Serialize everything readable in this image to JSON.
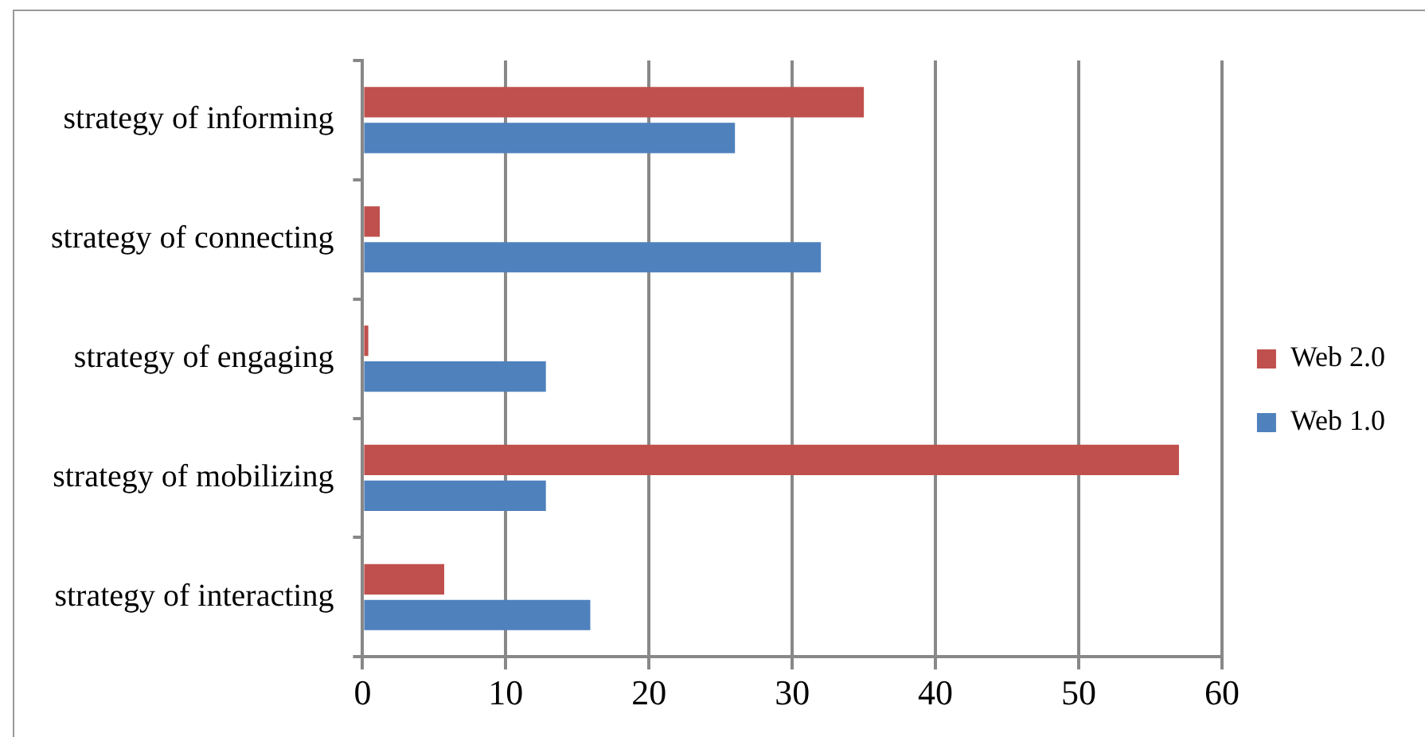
{
  "chart_data": {
    "type": "bar",
    "orientation": "horizontal",
    "categories": [
      "strategy of informing",
      "strategy of connecting",
      "strategy of engaging",
      "strategy of mobilizing",
      "strategy of interacting"
    ],
    "series": [
      {
        "name": "Web 2.0",
        "color": "#c0504d",
        "values": [
          35,
          1.2,
          0.4,
          57,
          5.7
        ]
      },
      {
        "name": "Web 1.0",
        "color": "#4f81bd",
        "values": [
          26,
          32,
          12.8,
          12.8,
          15.9
        ]
      }
    ],
    "xlim": [
      0,
      60
    ],
    "xticks": [
      0,
      10,
      20,
      30,
      40,
      50,
      60
    ],
    "grid": "x",
    "legend": "right"
  }
}
